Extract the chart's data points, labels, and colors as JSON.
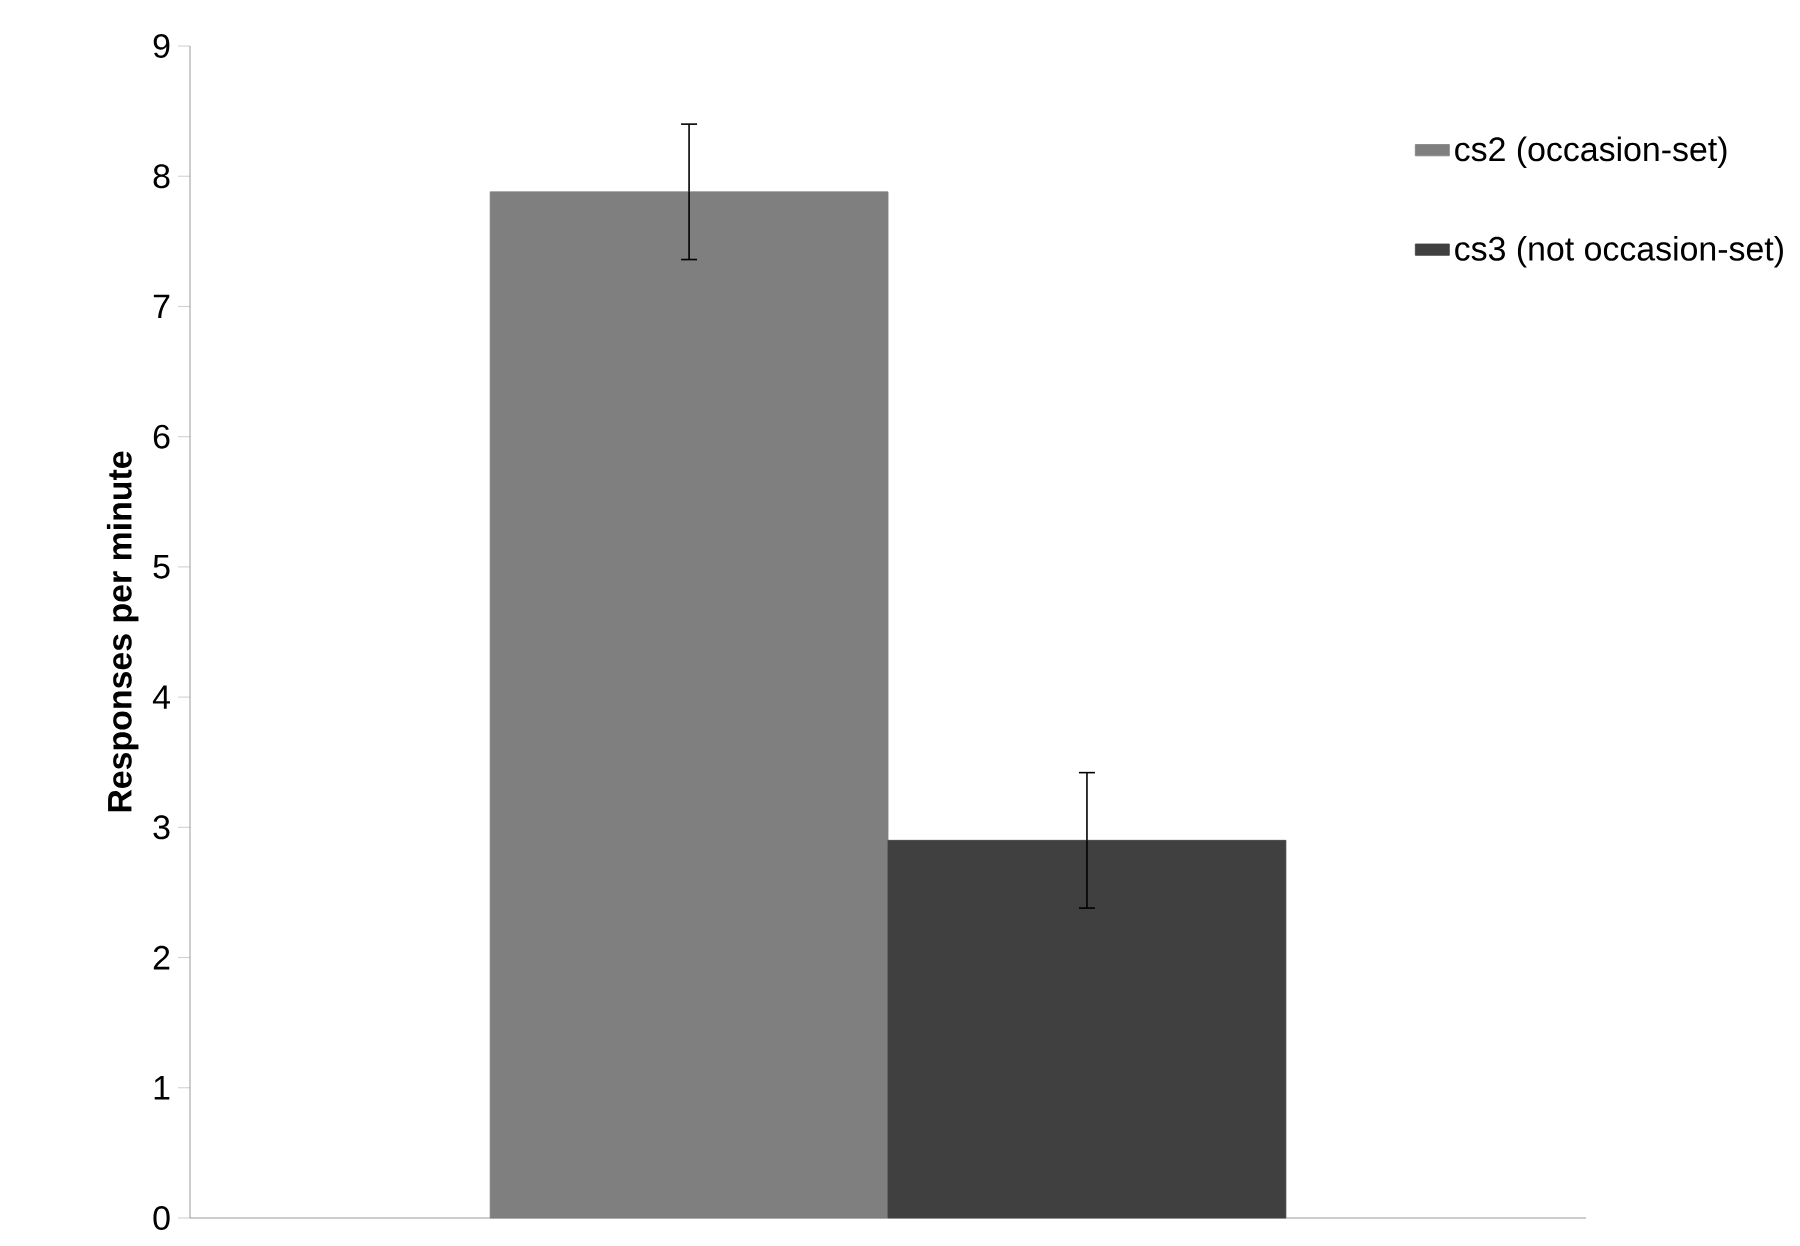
{
  "chart_data": {
    "type": "bar",
    "ylabel": "Responses per minute",
    "categories": [
      null
    ],
    "series": [
      {
        "name": "cs2 (occasion-set)",
        "color": "#7f7f7f",
        "values": [
          7.88
        ],
        "errors": [
          0.52
        ]
      },
      {
        "name": "cs3 (not occasion-set)",
        "color": "#404040",
        "values": [
          2.9
        ],
        "errors": [
          0.52
        ]
      }
    ],
    "ylim": [
      0,
      9
    ],
    "yticks": [
      0,
      1,
      2,
      3,
      4,
      5,
      6,
      7,
      8,
      9
    ],
    "legend": "top right",
    "grid": false
  }
}
